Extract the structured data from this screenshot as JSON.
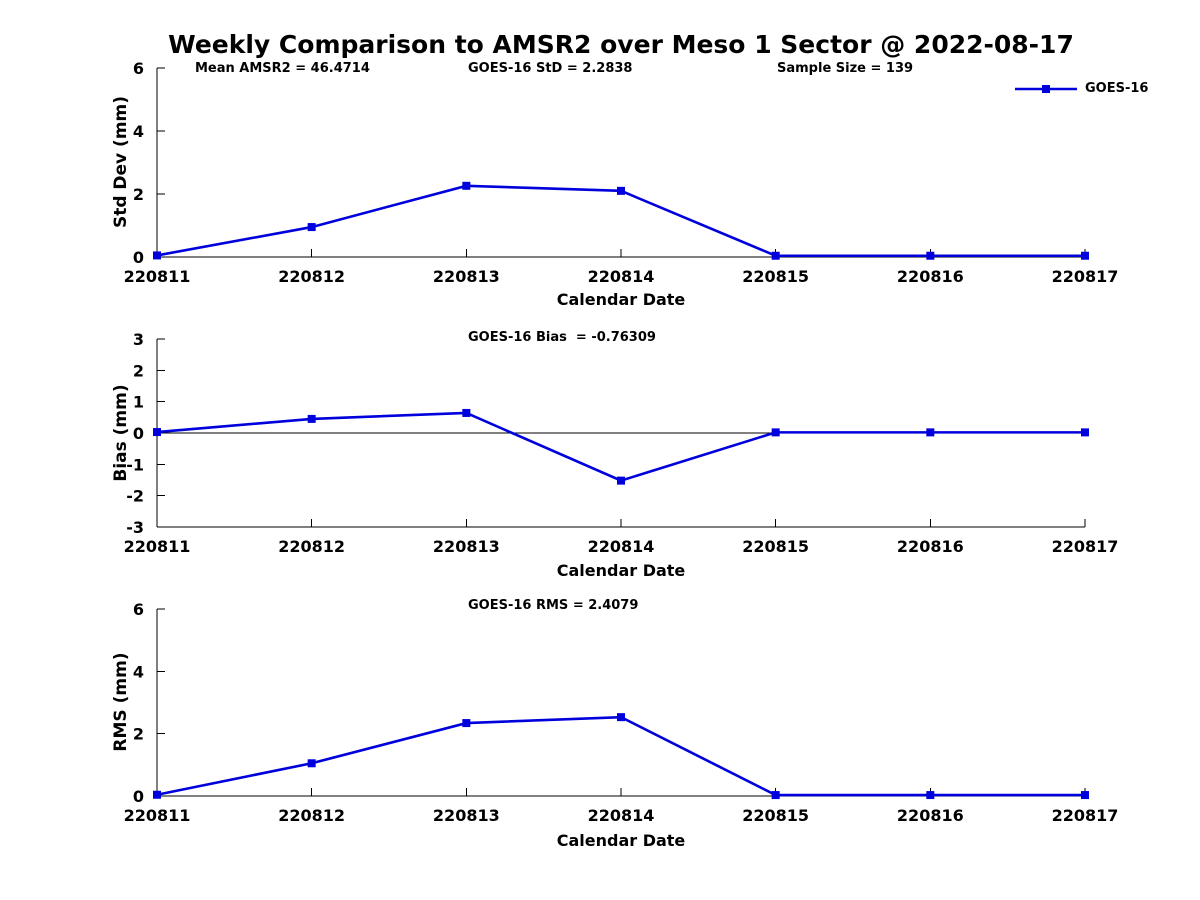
{
  "figure_title": "Weekly Comparison to AMSR2 over Meso 1 Sector @ 2022-08-17",
  "legend": {
    "label": "GOES-16"
  },
  "colors": {
    "line": "#0000dd",
    "axis": "#000000",
    "zero_line": "#000000",
    "background": "#ffffff"
  },
  "chart_data": [
    {
      "type": "line",
      "ylabel": "Std Dev (mm)",
      "xlabel": "Calendar Date",
      "categories": [
        "220811",
        "220812",
        "220813",
        "220814",
        "220815",
        "220816",
        "220817"
      ],
      "series": [
        {
          "name": "GOES-16",
          "marker": "filled-square",
          "values": [
            0.05,
            0.95,
            2.26,
            2.1,
            0.04,
            0.04,
            0.04
          ]
        }
      ],
      "ylim": [
        0,
        6
      ],
      "yticks": [
        0,
        2,
        4,
        6
      ],
      "grid": false,
      "legend_position": "top-right",
      "annotations": [
        "Mean AMSR2 = 46.4714",
        "GOES-16 StD = 2.2838",
        "Sample Size = 139"
      ]
    },
    {
      "type": "line",
      "ylabel": "Bias (mm)",
      "xlabel": "Calendar Date",
      "categories": [
        "220811",
        "220812",
        "220813",
        "220814",
        "220815",
        "220816",
        "220817"
      ],
      "series": [
        {
          "name": "GOES-16",
          "marker": "filled-square",
          "values": [
            0.03,
            0.45,
            0.64,
            -1.52,
            0.02,
            0.02,
            0.02
          ]
        }
      ],
      "ylim": [
        -3,
        3
      ],
      "yticks": [
        -3,
        -2,
        -1,
        0,
        1,
        2,
        3
      ],
      "zero_line": true,
      "grid": false,
      "annotations": [
        "GOES-16 Bias  = -0.76309"
      ]
    },
    {
      "type": "line",
      "ylabel": "RMS (mm)",
      "xlabel": "Calendar Date",
      "categories": [
        "220811",
        "220812",
        "220813",
        "220814",
        "220815",
        "220816",
        "220817"
      ],
      "series": [
        {
          "name": "GOES-16",
          "marker": "filled-square",
          "values": [
            0.04,
            1.05,
            2.34,
            2.53,
            0.03,
            0.03,
            0.03
          ]
        }
      ],
      "ylim": [
        0,
        6
      ],
      "yticks": [
        0,
        2,
        4,
        6
      ],
      "grid": false,
      "annotations": [
        "GOES-16 RMS = 2.4079"
      ]
    }
  ]
}
